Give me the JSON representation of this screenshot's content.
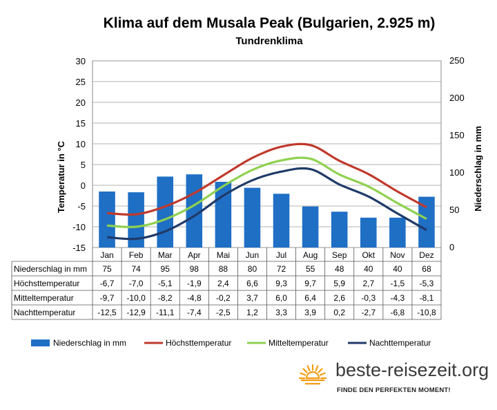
{
  "chart_data": {
    "type": "bar+line",
    "title": "Klima auf dem Musala Peak (Bulgarien, 2.925 m)",
    "subtitle": "Tundrenklima",
    "ylabel_left": "Temperatur in °C",
    "ylabel_right": "Niederschlag in mm",
    "ylim_left": [
      -15,
      30
    ],
    "yticks_left": [
      "30",
      "25",
      "20",
      "15",
      "10",
      "5",
      "0",
      "-5",
      "-10",
      "-15"
    ],
    "ylim_right": [
      0,
      250
    ],
    "yticks_right": [
      "250",
      "200",
      "150",
      "100",
      "50",
      "0"
    ],
    "grid": true,
    "categories": [
      "Jan",
      "Feb",
      "Mar",
      "Apr",
      "Mai",
      "Jun",
      "Jul",
      "Aug",
      "Sep",
      "Okt",
      "Nov",
      "Dez"
    ],
    "bars": {
      "name": "Niederschlag in mm",
      "axis": "right",
      "color": "#1f6fc5",
      "values": [
        75,
        74,
        95,
        98,
        88,
        80,
        72,
        55,
        48,
        40,
        40,
        68
      ]
    },
    "series": [
      {
        "name": "Höchsttemperatur",
        "color": "#c0392b",
        "values": [
          -6.7,
          -7.0,
          -5.1,
          -1.9,
          2.4,
          6.6,
          9.3,
          9.7,
          5.9,
          2.7,
          -1.5,
          -5.3
        ]
      },
      {
        "name": "Mitteltemperatur",
        "color": "#8fd14f",
        "values": [
          -9.7,
          -10.0,
          -8.2,
          -4.8,
          -0.2,
          3.7,
          6.0,
          6.4,
          2.6,
          -0.3,
          -4.3,
          -8.1
        ]
      },
      {
        "name": "Nachttemperatur",
        "color": "#1f3a68",
        "values": [
          -12.5,
          -12.9,
          -11.1,
          -7.4,
          -2.5,
          1.2,
          3.3,
          3.9,
          0.2,
          -2.7,
          -6.8,
          -10.8
        ]
      }
    ],
    "table": {
      "rows": [
        {
          "label": "Niederschlag in mm",
          "cells": [
            "75",
            "74",
            "95",
            "98",
            "88",
            "80",
            "72",
            "55",
            "48",
            "40",
            "40",
            "68"
          ]
        },
        {
          "label": "Höchsttemperatur",
          "cells": [
            "-6,7",
            "-7,0",
            "-5,1",
            "-1,9",
            "2,4",
            "6,6",
            "9,3",
            "9,7",
            "5,9",
            "2,7",
            "-1,5",
            "-5,3"
          ]
        },
        {
          "label": "Mitteltemperatur",
          "cells": [
            "-9,7",
            "-10,0",
            "-8,2",
            "-4,8",
            "-0,2",
            "3,7",
            "6,0",
            "6,4",
            "2,6",
            "-0,3",
            "-4,3",
            "-8,1"
          ]
        },
        {
          "label": "Nachttemperatur",
          "cells": [
            "-12,5",
            "-12,9",
            "-11,1",
            "-7,4",
            "-2,5",
            "1,2",
            "3,3",
            "3,9",
            "0,2",
            "-2,7",
            "-6,8",
            "-10,8"
          ]
        }
      ]
    },
    "legend_position": "bottom"
  },
  "brand": {
    "name": "beste-reisezeit.org",
    "tagline": "FINDE DEN PERFEKTEN MOMENT!",
    "sun_color": "#f39c12"
  }
}
